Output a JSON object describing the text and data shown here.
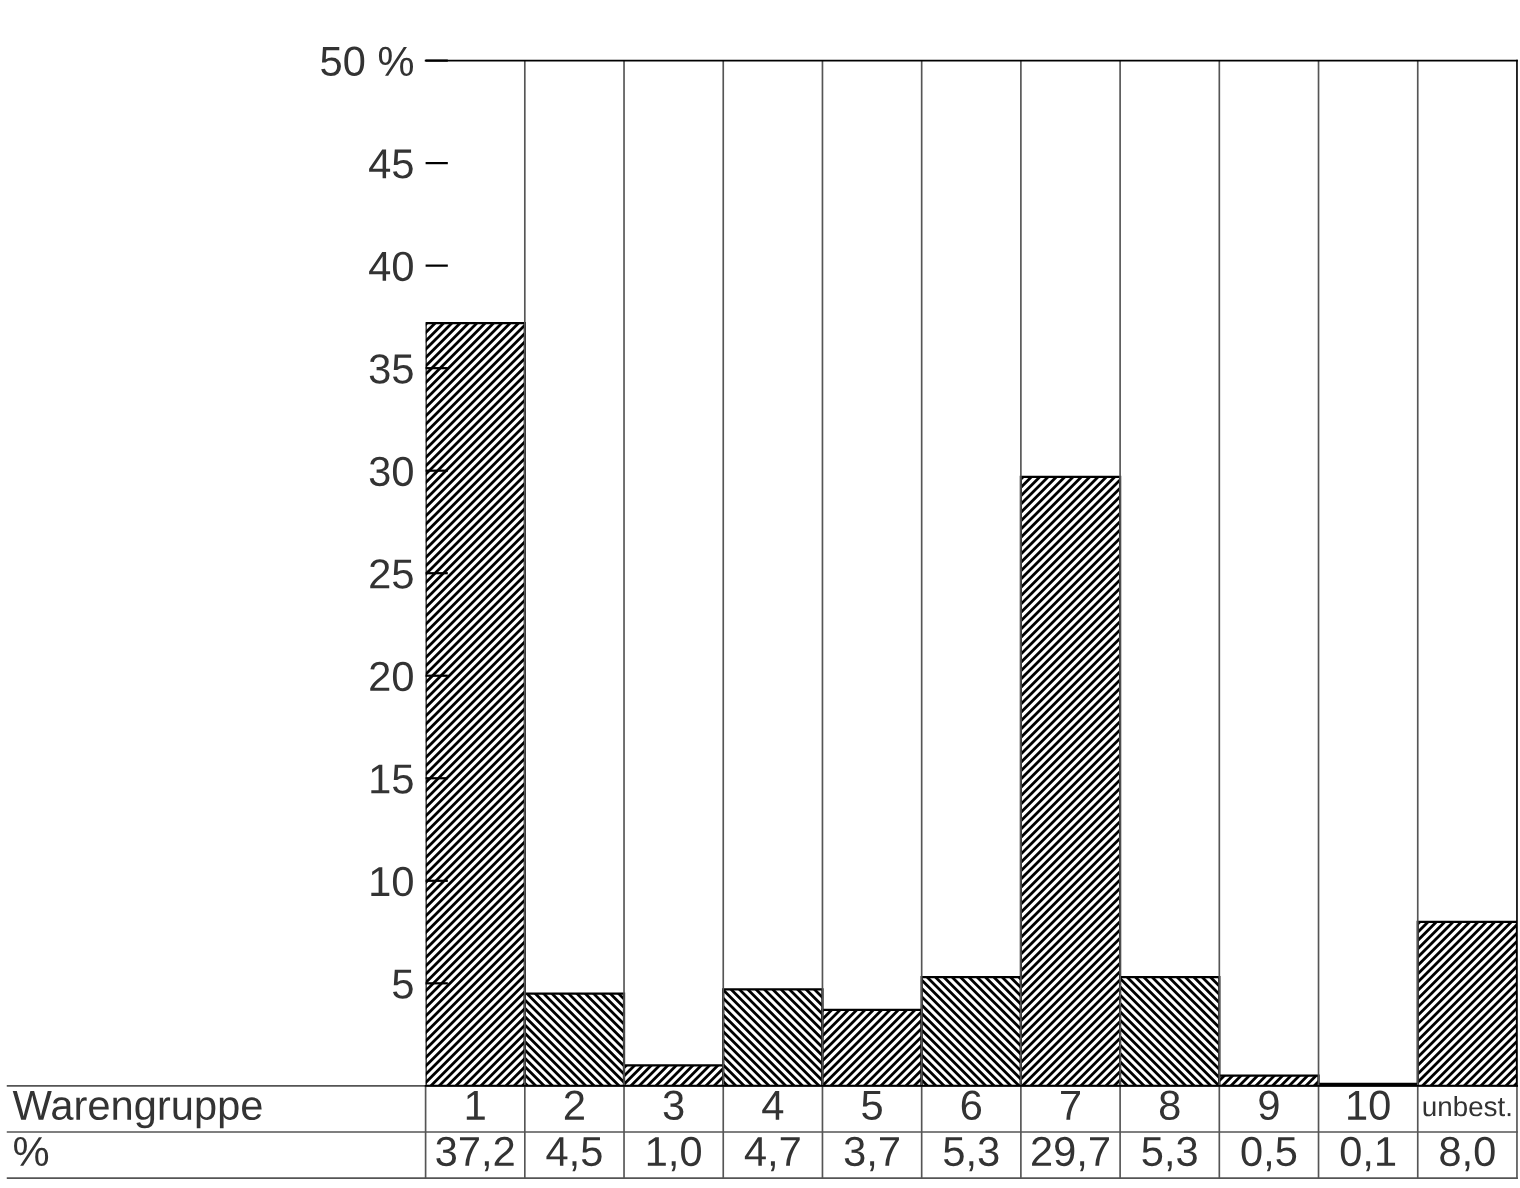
{
  "chart_data": {
    "type": "bar",
    "xlabel": "Warengruppe",
    "categories": [
      "1",
      "2",
      "3",
      "4",
      "5",
      "6",
      "7",
      "8",
      "9",
      "10",
      "unbest."
    ],
    "values": [
      37.2,
      4.5,
      1.0,
      4.7,
      3.7,
      5.3,
      29.7,
      5.3,
      0.5,
      0.1,
      8.0
    ],
    "value_labels": [
      "37,2",
      "4,5",
      "1,0",
      "4,7",
      "3,7",
      "5,3",
      "29,7",
      "5,3",
      "0,5",
      "0,1",
      "8,0"
    ],
    "color": "#000000",
    "ylim": [
      0,
      50
    ],
    "yticks": [
      5,
      10,
      15,
      20,
      25,
      30,
      35,
      40,
      45,
      {
        "value": 50,
        "label": "50 %"
      }
    ],
    "annotations": [
      "%"
    ],
    "grid": false,
    "legend": false
  }
}
